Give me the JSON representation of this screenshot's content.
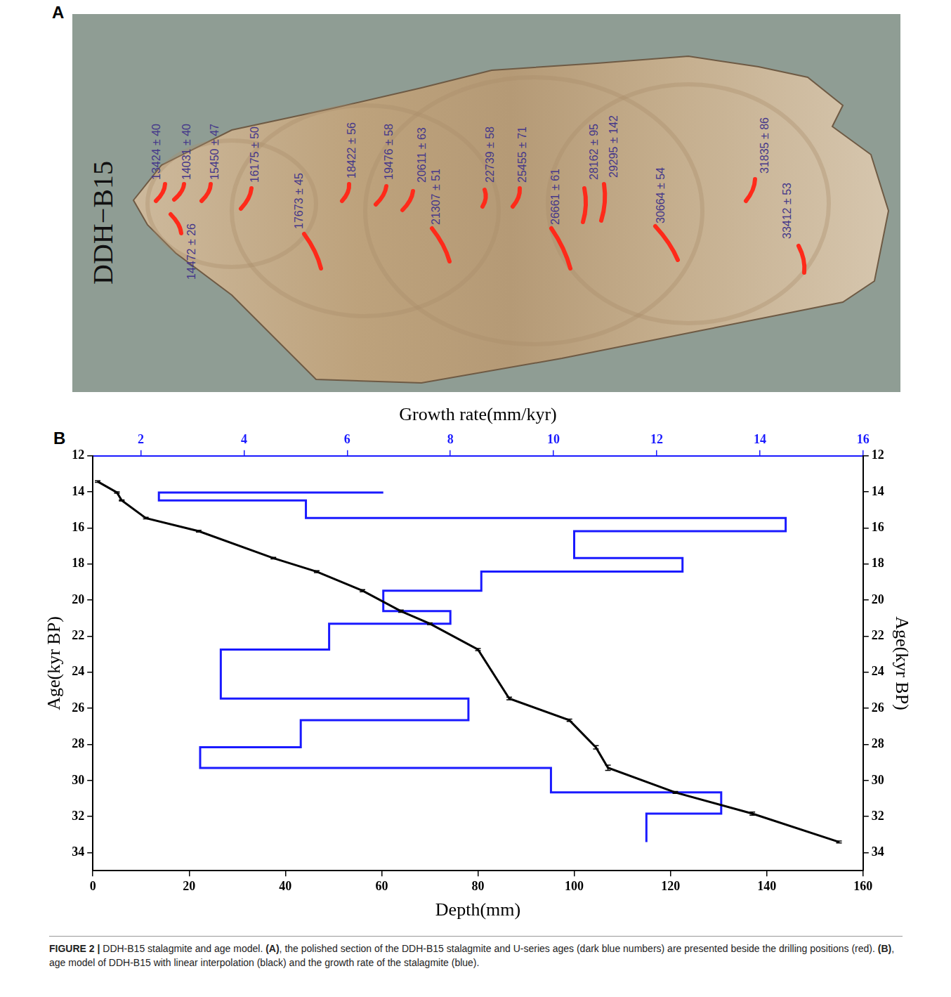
{
  "panel_a": {
    "letter": "A",
    "specimen": "DDH−B15",
    "ages": [
      "13424 ± 40",
      "14031 ± 40",
      "14472 ± 26",
      "15450 ± 47",
      "16175 ± 50",
      "17673 ± 45",
      "18422 ± 56",
      "19476 ± 58",
      "20611 ± 63",
      "21307 ± 51",
      "22739 ± 58",
      "25455 ± 71",
      "26661 ± 61",
      "28162 ± 95",
      "29295 ± 142",
      "30664 ± 54",
      "31835 ± 86",
      "33412 ± 53"
    ],
    "label_color": "#45388a",
    "drill_color": "#ff2a1a"
  },
  "chart_data": {
    "type": "line",
    "letter": "B",
    "x_label": "Depth(mm)",
    "x2_label": "Growth rate(mm/kyr)",
    "y_label": "Age(kyr BP)",
    "y2_label": "Age(kyr BP)",
    "xlim": [
      0,
      160
    ],
    "xticks": [
      0,
      20,
      40,
      60,
      80,
      100,
      120,
      140,
      160
    ],
    "x2lim": [
      1.07,
      16
    ],
    "x2ticks": [
      2,
      4,
      6,
      8,
      10,
      12,
      14,
      16
    ],
    "ylim": [
      12,
      35
    ],
    "yticks": [
      12,
      14,
      16,
      18,
      20,
      22,
      24,
      26,
      28,
      30,
      32,
      34
    ],
    "y2lim": [
      12,
      35
    ],
    "y2ticks": [
      12,
      14,
      16,
      18,
      20,
      22,
      24,
      26,
      28,
      30,
      32,
      34
    ],
    "grid": false,
    "series": [
      {
        "color": "#000000",
        "x": [
          1,
          5,
          6,
          11,
          22,
          37.5,
          46.5,
          56,
          64,
          70,
          80,
          86.5,
          99,
          104.5,
          107,
          121,
          137,
          155
        ],
        "y": [
          13.424,
          14.031,
          14.472,
          15.45,
          16.175,
          17.673,
          18.422,
          19.476,
          20.611,
          21.307,
          22.739,
          25.455,
          26.661,
          28.162,
          29.295,
          30.664,
          31.835,
          33.412
        ],
        "y_errors": [
          0.04,
          0.04,
          0.026,
          0.047,
          0.05,
          0.045,
          0.056,
          0.058,
          0.063,
          0.051,
          0.058,
          0.071,
          0.061,
          0.095,
          0.142,
          0.054,
          0.086,
          0.053
        ]
      },
      {
        "color": "#1a1aff",
        "axis": "x2",
        "x": [
          6.7,
          2.35,
          2.35,
          5.2,
          5.2,
          14.5,
          14.5,
          10.4,
          10.4,
          12.5,
          12.5,
          8.6,
          8.6,
          6.7,
          6.7,
          8.0,
          8.0,
          5.65,
          5.65,
          3.55,
          3.55,
          8.35,
          8.35,
          5.1,
          5.1,
          3.15,
          3.15,
          9.95,
          9.95,
          13.25,
          13.25,
          11.8,
          11.8
        ],
        "y": [
          14.03,
          14.03,
          14.47,
          14.47,
          15.45,
          15.45,
          16.18,
          16.18,
          17.67,
          17.67,
          18.42,
          18.42,
          19.48,
          19.48,
          20.61,
          20.61,
          21.31,
          21.31,
          22.74,
          22.74,
          25.46,
          25.46,
          26.66,
          26.66,
          28.16,
          28.16,
          29.3,
          29.3,
          30.66,
          30.66,
          31.84,
          31.84,
          33.41
        ]
      }
    ]
  },
  "caption": [
    {
      "text": "FIGURE 2 |",
      "bold": true
    },
    {
      "text": " DDH-B15 stalagmite and age model. ",
      "bold": false
    },
    {
      "text": "(A)",
      "bold": true
    },
    {
      "text": ", the polished section of the DDH-B15 stalagmite and U-series ages (dark blue numbers) are presented beside the drilling positions (red). ",
      "bold": false
    },
    {
      "text": "(B)",
      "bold": true
    },
    {
      "text": ", age model of DDH-B15 with linear interpolation (black) and the growth rate of the stalagmite (blue).",
      "bold": false
    }
  ]
}
